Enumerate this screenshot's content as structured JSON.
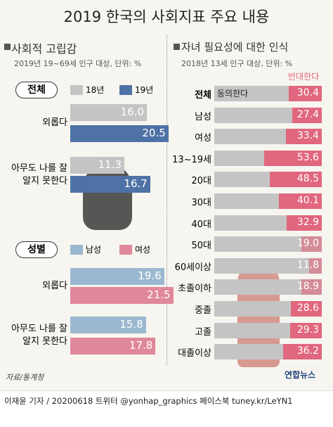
{
  "title": "2019 한국의 사회지표 주요 내용",
  "chart_data": [
    {
      "type": "bar",
      "title": "사회적 고립감",
      "subtitle": "2019년 19~69세 인구 대상, 단위: %",
      "group": "전체",
      "categories": [
        "외롭다",
        "아무도 나를 잘 알지 못한다"
      ],
      "xlim": [
        0,
        22
      ],
      "series": [
        {
          "name": "18년",
          "color": "#c4c4c4",
          "values": [
            16.0,
            11.3
          ],
          "value_labels": [
            "16.0",
            "11.3"
          ]
        },
        {
          "name": "19년",
          "color": "#4f72a6",
          "values": [
            20.5,
            16.7
          ]
        }
      ]
    },
    {
      "type": "bar",
      "group": "성별",
      "categories": [
        "외롭다",
        "아무도 나를 잘 알지 못한다"
      ],
      "xlim": [
        0,
        22
      ],
      "series": [
        {
          "name": "남성",
          "color": "#9bb8d0",
          "values": [
            19.6,
            15.8
          ]
        },
        {
          "name": "여성",
          "color": "#e0889b",
          "values": [
            21.5,
            17.8
          ]
        }
      ]
    },
    {
      "type": "hbar-right",
      "title": "자녀 필요성에 대한 인식",
      "subtitle": "2018년 13세 인구 대상, 단위: %",
      "xlim": [
        0,
        100
      ],
      "categories": [
        "전체",
        "남성",
        "여성",
        "13~19세",
        "20대",
        "30대",
        "40대",
        "50대",
        "60세이상",
        "초졸이하",
        "중졸",
        "고졸",
        "대졸이상"
      ],
      "series": [
        {
          "name": "동의한다",
          "color": "#c4c4c4"
        },
        {
          "name": "반대한다",
          "color": "#e0677d",
          "values": [
            30.4,
            27.4,
            33.4,
            53.6,
            48.5,
            40.1,
            32.9,
            19.0,
            11.8,
            18.9,
            28.6,
            29.3,
            36.2
          ],
          "value_labels": [
            "30.4",
            "27.4",
            "33.4",
            "53.6",
            "48.5",
            "40.1",
            "32.9",
            "19.0",
            "11.8",
            "18.9",
            "28.6",
            "29.3",
            "36.2"
          ]
        }
      ]
    }
  ],
  "source": "자료/통계청",
  "footer": "이재윤 기자 / 20200618   트위터 @yonhap_graphics  페이스북 tuney.kr/LeYN1",
  "logo": "연합뉴스"
}
